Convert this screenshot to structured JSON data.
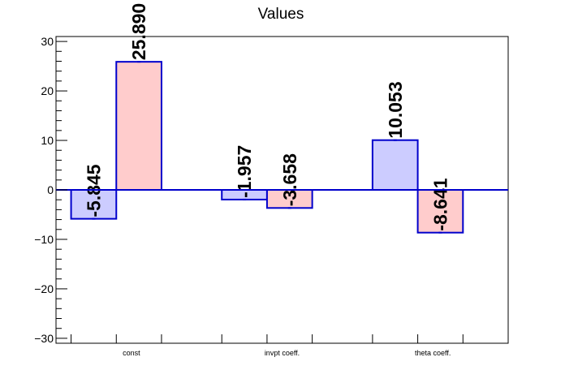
{
  "chart_data": {
    "type": "bar",
    "title": "Values",
    "xlabel": "",
    "ylabel": "",
    "categories": [
      "const",
      "invpt coeff.",
      "theta coeff."
    ],
    "series": [
      {
        "values": [
          -5.845,
          -1.957,
          10.053
        ],
        "color": "#ccccff"
      },
      {
        "values": [
          25.89,
          -3.658,
          -8.641
        ],
        "color": "#ffcccc"
      }
    ],
    "value_labels": [
      [
        "-5.845",
        "-1.957",
        "10.053"
      ],
      [
        "25.890",
        "-3.658",
        "-8.641"
      ]
    ],
    "ylim": [
      -31,
      31
    ],
    "yticks": [
      -30,
      -20,
      -10,
      0,
      10,
      20,
      30
    ],
    "ytick_labels": [
      "−30",
      "−20",
      "−10",
      "0",
      "10",
      "20",
      "30"
    ],
    "bar_edge_color": "#0000cc",
    "grid": false,
    "legend": "none"
  }
}
